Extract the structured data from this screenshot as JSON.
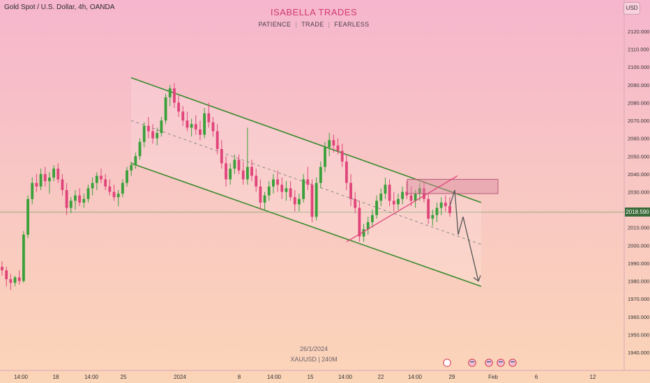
{
  "header": {
    "symbol": "Gold Spot / U.S. Dollar, 4h, OANDA",
    "title": "ISABELLA TRADES",
    "tagline": [
      "PATIENCE",
      "TRADE",
      "FEARLESS"
    ],
    "currency_button": "USD"
  },
  "footer": {
    "date": "26/1/2024",
    "symbol_interval": "XAUUSD | 240M"
  },
  "current_price": "2018.590",
  "colors": {
    "bull": "#3aa03a",
    "bear": "#e0457a",
    "channel": "#3b8a2e",
    "midline": "#8a8a8a",
    "trendline": "#e0457a",
    "zone": "#d98aa0",
    "arrow": "#555555"
  },
  "chart_data": {
    "type": "candlestick",
    "ylim": [
      1937,
      2130
    ],
    "y_ticks": [
      "2120.000",
      "2110.000",
      "2100.000",
      "2090.000",
      "2080.000",
      "2070.000",
      "2060.000",
      "2050.000",
      "2040.000",
      "2030.000",
      "2020.000",
      "2010.000",
      "2000.000",
      "1990.000",
      "1980.000",
      "1970.000",
      "1960.000",
      "1950.000",
      "1940.000"
    ],
    "x_ticks": [
      "14:00",
      "18",
      "14:00",
      "25",
      "2024",
      "8",
      "14:00",
      "15",
      "14:00",
      "22",
      "14:00",
      "29",
      "Feb",
      "6",
      "12"
    ],
    "annotations": {
      "channel_upper_start": [
        0,
        2094
      ],
      "channel_upper_end": [
        1,
        2024
      ],
      "channel_lower_start": [
        0,
        2046
      ],
      "channel_lower_end": [
        1,
        1977
      ],
      "resistance_zone": [
        2029,
        2037
      ]
    },
    "candles": [
      [
        1988,
        1991,
        1983,
        1986
      ],
      [
        1986,
        1988,
        1977,
        1981
      ],
      [
        1981,
        1984,
        1975,
        1979
      ],
      [
        1979,
        1983,
        1977,
        1982
      ],
      [
        1982,
        1986,
        1978,
        1980
      ],
      [
        1980,
        2008,
        1979,
        2006
      ],
      [
        2006,
        2028,
        2004,
        2026
      ],
      [
        2026,
        2038,
        2023,
        2035
      ],
      [
        2035,
        2040,
        2030,
        2033
      ],
      [
        2033,
        2043,
        2031,
        2040
      ],
      [
        2040,
        2044,
        2033,
        2036
      ],
      [
        2036,
        2041,
        2029,
        2038
      ],
      [
        2038,
        2045,
        2036,
        2043
      ],
      [
        2043,
        2046,
        2035,
        2037
      ],
      [
        2037,
        2040,
        2028,
        2031
      ],
      [
        2031,
        2035,
        2017,
        2021
      ],
      [
        2021,
        2027,
        2018,
        2025
      ],
      [
        2025,
        2031,
        2020,
        2028
      ],
      [
        2028,
        2032,
        2022,
        2024
      ],
      [
        2024,
        2029,
        2021,
        2026
      ],
      [
        2026,
        2034,
        2024,
        2032
      ],
      [
        2032,
        2038,
        2028,
        2035
      ],
      [
        2035,
        2041,
        2031,
        2039
      ],
      [
        2039,
        2043,
        2035,
        2037
      ],
      [
        2037,
        2040,
        2031,
        2033
      ],
      [
        2033,
        2037,
        2028,
        2030
      ],
      [
        2030,
        2034,
        2025,
        2027
      ],
      [
        2027,
        2031,
        2022,
        2029
      ],
      [
        2029,
        2037,
        2027,
        2035
      ],
      [
        2035,
        2044,
        2033,
        2042
      ],
      [
        2042,
        2047,
        2039,
        2045
      ],
      [
        2045,
        2052,
        2043,
        2050
      ],
      [
        2050,
        2060,
        2048,
        2058
      ],
      [
        2058,
        2069,
        2055,
        2067
      ],
      [
        2067,
        2072,
        2060,
        2064
      ],
      [
        2064,
        2068,
        2057,
        2060
      ],
      [
        2060,
        2066,
        2056,
        2063
      ],
      [
        2063,
        2072,
        2061,
        2070
      ],
      [
        2070,
        2085,
        2068,
        2083
      ],
      [
        2083,
        2090,
        2078,
        2088
      ],
      [
        2088,
        2091,
        2077,
        2080
      ],
      [
        2080,
        2084,
        2072,
        2075
      ],
      [
        2075,
        2078,
        2067,
        2070
      ],
      [
        2070,
        2075,
        2064,
        2066
      ],
      [
        2066,
        2071,
        2061,
        2068
      ],
      [
        2068,
        2073,
        2062,
        2065
      ],
      [
        2065,
        2070,
        2059,
        2062
      ],
      [
        2062,
        2077,
        2060,
        2074
      ],
      [
        2074,
        2080,
        2066,
        2069
      ],
      [
        2069,
        2072,
        2061,
        2064
      ],
      [
        2064,
        2068,
        2051,
        2054
      ],
      [
        2054,
        2059,
        2043,
        2046
      ],
      [
        2046,
        2050,
        2033,
        2037
      ],
      [
        2037,
        2046,
        2034,
        2043
      ],
      [
        2043,
        2051,
        2040,
        2048
      ],
      [
        2048,
        2051,
        2040,
        2042
      ],
      [
        2042,
        2047,
        2034,
        2037
      ],
      [
        2037,
        2066,
        2034,
        2044
      ],
      [
        2044,
        2048,
        2036,
        2039
      ],
      [
        2039,
        2043,
        2030,
        2033
      ],
      [
        2033,
        2037,
        2020,
        2024
      ],
      [
        2024,
        2030,
        2020,
        2028
      ],
      [
        2028,
        2036,
        2025,
        2033
      ],
      [
        2033,
        2040,
        2029,
        2037
      ],
      [
        2037,
        2042,
        2030,
        2034
      ],
      [
        2034,
        2038,
        2026,
        2030
      ],
      [
        2030,
        2036,
        2025,
        2032
      ],
      [
        2032,
        2036,
        2025,
        2027
      ],
      [
        2027,
        2031,
        2019,
        2023
      ],
      [
        2023,
        2029,
        2019,
        2026
      ],
      [
        2026,
        2040,
        2024,
        2037
      ],
      [
        2037,
        2044,
        2031,
        2034
      ],
      [
        2034,
        2037,
        2013,
        2016
      ],
      [
        2016,
        2038,
        2014,
        2035
      ],
      [
        2035,
        2047,
        2032,
        2044
      ],
      [
        2044,
        2058,
        2041,
        2055
      ],
      [
        2055,
        2063,
        2050,
        2059
      ],
      [
        2059,
        2062,
        2052,
        2056
      ],
      [
        2056,
        2060,
        2051,
        2053
      ],
      [
        2053,
        2057,
        2044,
        2047
      ],
      [
        2047,
        2051,
        2031,
        2035
      ],
      [
        2035,
        2040,
        2022,
        2026
      ],
      [
        2026,
        2030,
        2018,
        2021
      ],
      [
        2021,
        2025,
        2002,
        2005
      ],
      [
        2005,
        2012,
        2002,
        2009
      ],
      [
        2009,
        2016,
        2006,
        2013
      ],
      [
        2013,
        2020,
        2010,
        2017
      ],
      [
        2017,
        2028,
        2015,
        2025
      ],
      [
        2025,
        2032,
        2022,
        2029
      ],
      [
        2029,
        2038,
        2026,
        2034
      ],
      [
        2034,
        2037,
        2022,
        2025
      ],
      [
        2025,
        2030,
        2019,
        2023
      ],
      [
        2023,
        2029,
        2020,
        2026
      ],
      [
        2026,
        2033,
        2023,
        2030
      ],
      [
        2030,
        2036,
        2026,
        2028
      ],
      [
        2028,
        2033,
        2022,
        2025
      ],
      [
        2025,
        2031,
        2021,
        2029
      ],
      [
        2029,
        2035,
        2025,
        2032
      ],
      [
        2032,
        2036,
        2024,
        2026
      ],
      [
        2026,
        2029,
        2012,
        2015
      ],
      [
        2015,
        2020,
        2011,
        2017
      ],
      [
        2017,
        2024,
        2013,
        2021
      ],
      [
        2021,
        2027,
        2017,
        2024
      ],
      [
        2024,
        2028,
        2019,
        2022
      ],
      [
        2022,
        2027,
        2016,
        2018
      ]
    ]
  }
}
